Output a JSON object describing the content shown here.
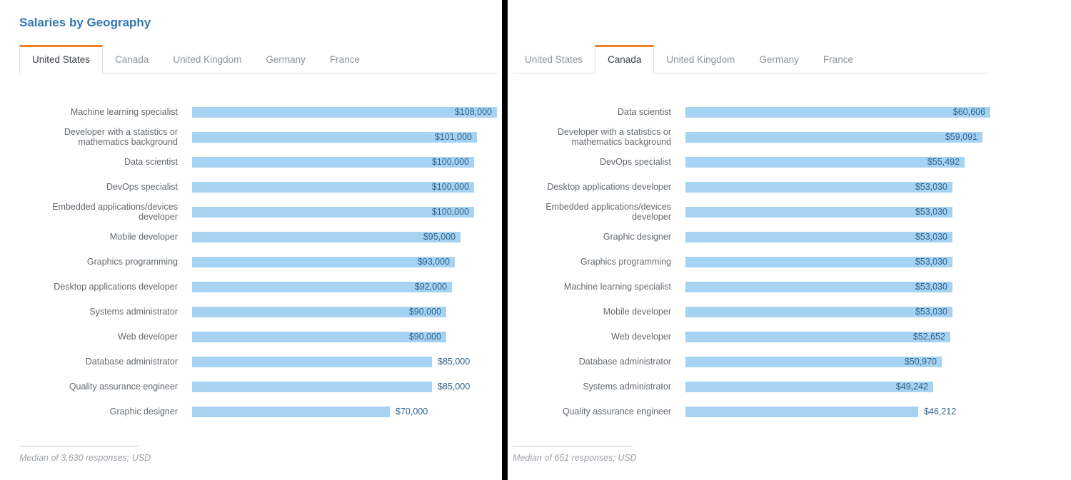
{
  "title": "Salaries by Geography",
  "tabs": [
    "United States",
    "Canada",
    "United Kingdom",
    "Germany",
    "France"
  ],
  "colors": {
    "title": "#3176b5",
    "bar_fill": "#a7d3f2",
    "value_text": "#31638f",
    "label_text": "#63696f",
    "tab_accent": "#f48024",
    "active_tab_text": "#3b4045",
    "inactive_tab_text": "#8b949c",
    "footer_text": "#9da2a8",
    "divider": "#000000"
  },
  "panels": [
    {
      "active_tab": "United States",
      "footnote": "Median of 3,630 responses; USD",
      "chart_data": {
        "type": "bar",
        "orientation": "horizontal",
        "unit": "USD",
        "xmax": 108000,
        "categories": [
          "Machine learning specialist",
          "Developer with a statistics or\nmathematics background",
          "Data scientist",
          "DevOps specialist",
          "Embedded applications/devices\ndeveloper",
          "Mobile developer",
          "Graphics programming",
          "Desktop applications developer",
          "Systems administrator",
          "Web developer",
          "Database administrator",
          "Quality assurance engineer",
          "Graphic designer"
        ],
        "values": [
          108000,
          101000,
          100000,
          100000,
          100000,
          95000,
          93000,
          92000,
          90000,
          90000,
          85000,
          85000,
          70000
        ],
        "value_labels": [
          "$108,000",
          "$101,000",
          "$100,000",
          "$100,000",
          "$100,000",
          "$95,000",
          "$93,000",
          "$92,000",
          "$90,000",
          "$90,000",
          "$85,000",
          "$85,000",
          "$70,000"
        ],
        "value_inside": [
          true,
          true,
          true,
          true,
          true,
          true,
          true,
          true,
          true,
          true,
          false,
          false,
          false
        ]
      }
    },
    {
      "active_tab": "Canada",
      "footnote": "Median of 651 responses; USD",
      "chart_data": {
        "type": "bar",
        "orientation": "horizontal",
        "unit": "USD",
        "xmax": 60606,
        "categories": [
          "Data scientist",
          "Developer with a statistics or\nmathematics background",
          "DevOps specialist",
          "Desktop applications developer",
          "Embedded applications/devices\ndeveloper",
          "Graphic designer",
          "Graphics programming",
          "Machine learning specialist",
          "Mobile developer",
          "Web developer",
          "Database administrator",
          "Systems administrator",
          "Quality assurance engineer"
        ],
        "values": [
          60606,
          59091,
          55492,
          53030,
          53030,
          53030,
          53030,
          53030,
          53030,
          52652,
          50970,
          49242,
          46212
        ],
        "value_labels": [
          "$60,606",
          "$59,091",
          "$55,492",
          "$53,030",
          "$53,030",
          "$53,030",
          "$53,030",
          "$53,030",
          "$53,030",
          "$52,652",
          "$50,970",
          "$49,242",
          "$46,212"
        ],
        "value_inside": [
          true,
          true,
          true,
          true,
          true,
          true,
          true,
          true,
          true,
          true,
          true,
          true,
          false
        ]
      }
    }
  ]
}
